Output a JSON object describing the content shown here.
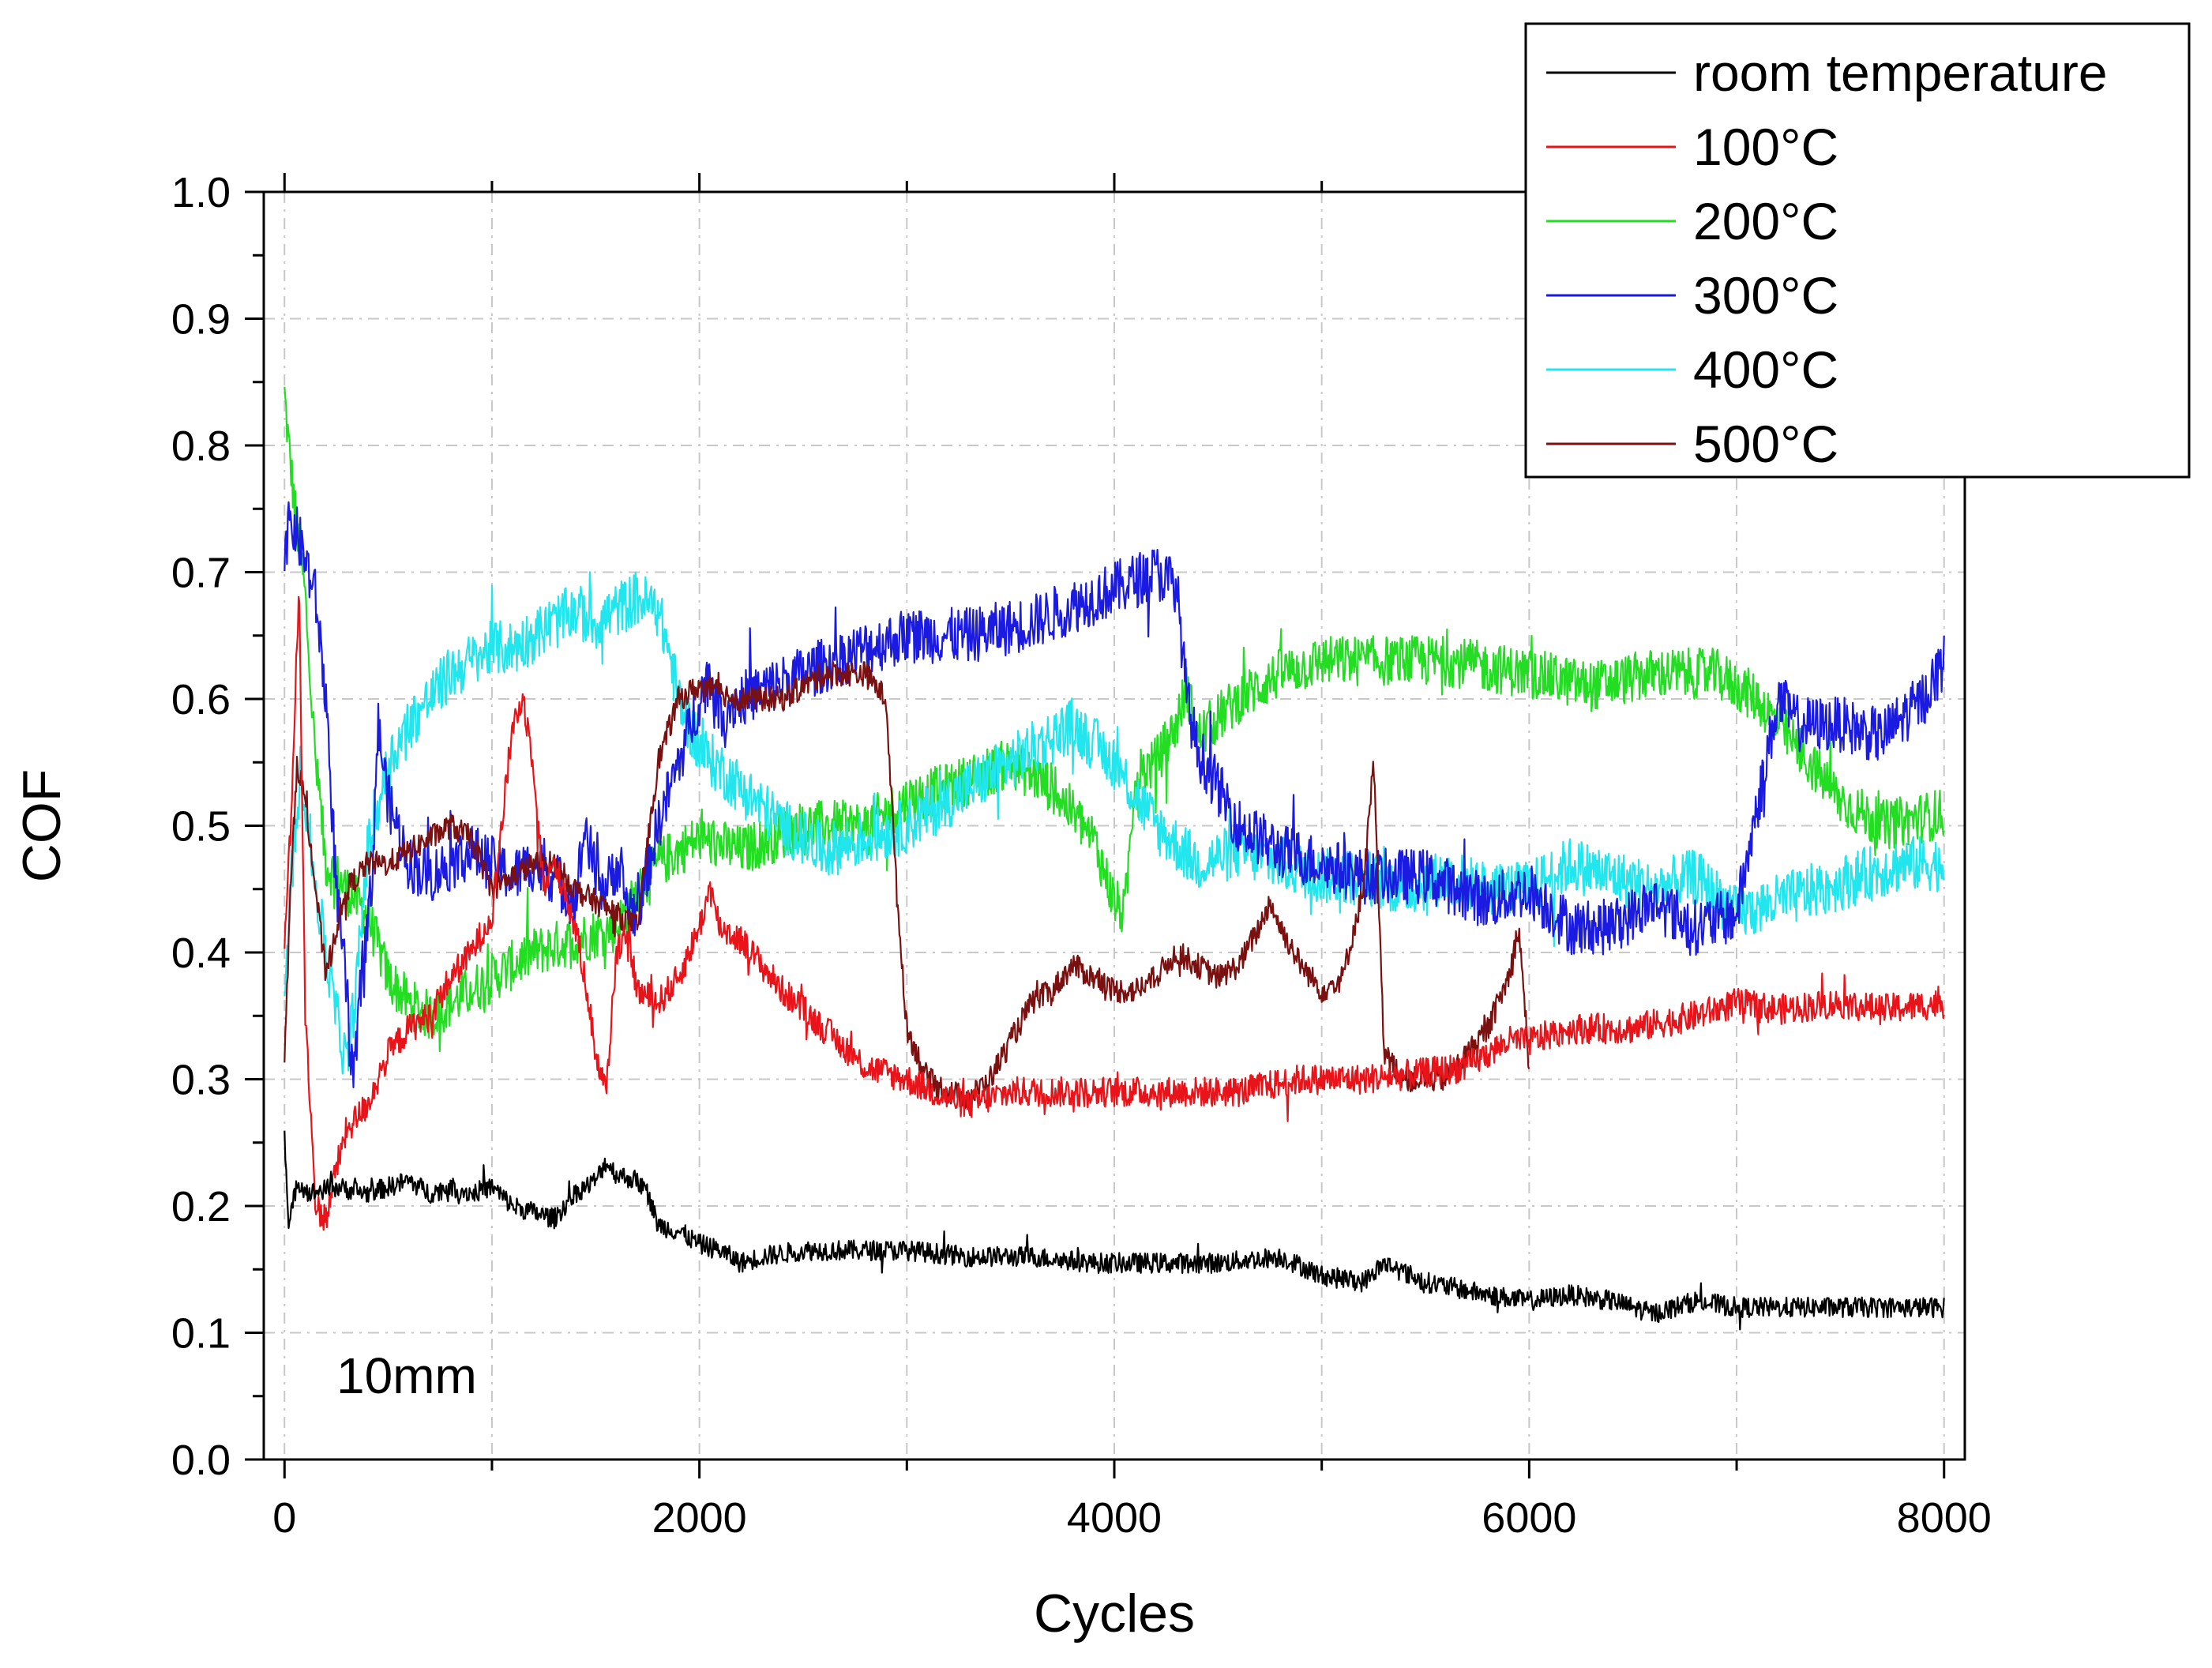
{
  "chart_data": {
    "type": "line",
    "title": "",
    "xlabel": "Cycles",
    "ylabel": "COF",
    "xlim": [
      -100,
      8100
    ],
    "ylim": [
      0.0,
      1.0
    ],
    "x_ticks": [
      0,
      2000,
      4000,
      6000,
      8000
    ],
    "x_tick_labels": [
      "0",
      "2000",
      "4000",
      "6000",
      "8000"
    ],
    "y_ticks": [
      0.0,
      0.1,
      0.2,
      0.3,
      0.4,
      0.5,
      0.6,
      0.7,
      0.8,
      0.9,
      1.0
    ],
    "y_tick_labels": [
      "0.0",
      "0.1",
      "0.2",
      "0.3",
      "0.4",
      "0.5",
      "0.6",
      "0.7",
      "0.8",
      "0.9",
      "1.0"
    ],
    "grid": true,
    "legend_position": "top-right",
    "annotation": "10mm",
    "series": [
      {
        "name": "room temperature",
        "color": "#000000",
        "noise": 0.008,
        "x": [
          0,
          20,
          60,
          120,
          250,
          400,
          500,
          600,
          700,
          800,
          900,
          1000,
          1100,
          1200,
          1300,
          1400,
          1500,
          1550,
          1600,
          1700,
          1750,
          1800,
          1900,
          2000,
          2100,
          2200,
          2300,
          2500,
          2700,
          3000,
          3300,
          3600,
          3900,
          4200,
          4500,
          4800,
          5000,
          5200,
          5300,
          5500,
          5800,
          6000,
          6200,
          6400,
          6600,
          6800,
          7000,
          7200,
          7400,
          7600,
          8000
        ],
        "y": [
          0.26,
          0.18,
          0.22,
          0.21,
          0.215,
          0.21,
          0.215,
          0.22,
          0.21,
          0.215,
          0.21,
          0.215,
          0.2,
          0.195,
          0.19,
          0.21,
          0.22,
          0.235,
          0.225,
          0.22,
          0.21,
          0.185,
          0.18,
          0.17,
          0.165,
          0.155,
          0.16,
          0.165,
          0.165,
          0.165,
          0.16,
          0.16,
          0.155,
          0.155,
          0.155,
          0.16,
          0.145,
          0.14,
          0.155,
          0.14,
          0.13,
          0.125,
          0.13,
          0.125,
          0.115,
          0.125,
          0.12,
          0.12,
          0.12,
          0.12,
          0.12
        ]
      },
      {
        "name": "100°C",
        "color": "#e8141a",
        "noise": 0.012,
        "x": [
          0,
          30,
          70,
          100,
          150,
          200,
          250,
          300,
          400,
          500,
          600,
          700,
          800,
          900,
          1000,
          1100,
          1150,
          1200,
          1250,
          1300,
          1350,
          1400,
          1450,
          1500,
          1550,
          1600,
          1650,
          1700,
          1800,
          1900,
          2000,
          2050,
          2100,
          2200,
          2300,
          2400,
          2600,
          2800,
          3000,
          3200,
          3300,
          3500,
          3700,
          4000,
          4300,
          4600,
          4900,
          5200,
          5500,
          5700,
          5900,
          6000,
          6200,
          6500,
          6800,
          7000,
          7200,
          7500,
          7700,
          8000
        ],
        "y": [
          0.4,
          0.5,
          0.69,
          0.35,
          0.2,
          0.19,
          0.23,
          0.26,
          0.28,
          0.32,
          0.34,
          0.35,
          0.38,
          0.4,
          0.43,
          0.58,
          0.6,
          0.55,
          0.45,
          0.47,
          0.45,
          0.42,
          0.38,
          0.32,
          0.29,
          0.4,
          0.42,
          0.37,
          0.36,
          0.38,
          0.42,
          0.45,
          0.42,
          0.41,
          0.39,
          0.37,
          0.34,
          0.31,
          0.3,
          0.285,
          0.28,
          0.29,
          0.29,
          0.29,
          0.29,
          0.29,
          0.3,
          0.3,
          0.305,
          0.31,
          0.33,
          0.33,
          0.34,
          0.34,
          0.35,
          0.36,
          0.355,
          0.36,
          0.355,
          0.36
        ]
      },
      {
        "name": "200°C",
        "color": "#22dd22",
        "noise": 0.02,
        "x": [
          0,
          20,
          50,
          100,
          150,
          200,
          300,
          400,
          500,
          600,
          700,
          800,
          1000,
          1200,
          1400,
          1600,
          1800,
          2000,
          2200,
          2500,
          2800,
          3000,
          3200,
          3500,
          3700,
          3900,
          4000,
          4050,
          4100,
          4200,
          4300,
          4350,
          4400,
          4600,
          4800,
          5000,
          5300,
          5600,
          6000,
          6300,
          6600,
          6900,
          7100,
          7300,
          7500,
          7700,
          8000
        ],
        "y": [
          0.84,
          0.8,
          0.75,
          0.68,
          0.55,
          0.47,
          0.45,
          0.43,
          0.38,
          0.36,
          0.35,
          0.36,
          0.38,
          0.4,
          0.41,
          0.42,
          0.47,
          0.49,
          0.48,
          0.5,
          0.5,
          0.52,
          0.53,
          0.55,
          0.53,
          0.49,
          0.44,
          0.43,
          0.54,
          0.55,
          0.58,
          0.61,
          0.57,
          0.6,
          0.62,
          0.63,
          0.63,
          0.63,
          0.62,
          0.61,
          0.62,
          0.62,
          0.6,
          0.56,
          0.52,
          0.5,
          0.51
        ]
      },
      {
        "name": "300°C",
        "color": "#1a1ae0",
        "noise": 0.022,
        "x": [
          0,
          30,
          60,
          100,
          150,
          200,
          250,
          300,
          330,
          380,
          420,
          450,
          500,
          600,
          700,
          800,
          900,
          1000,
          1100,
          1200,
          1300,
          1400,
          1450,
          1500,
          1550,
          1600,
          1650,
          1700,
          1800,
          1900,
          2000,
          2050,
          2100,
          2200,
          2500,
          2800,
          3000,
          3300,
          3600,
          3900,
          4200,
          4300,
          4350,
          4400,
          4600,
          4800,
          5000,
          5200,
          5500,
          5800,
          6000,
          6200,
          6400,
          6600,
          6800,
          7000,
          7200,
          7300,
          7500,
          7700,
          7900,
          8000
        ],
        "y": [
          0.72,
          0.74,
          0.73,
          0.71,
          0.68,
          0.6,
          0.45,
          0.37,
          0.29,
          0.4,
          0.45,
          0.58,
          0.52,
          0.47,
          0.46,
          0.47,
          0.48,
          0.47,
          0.46,
          0.47,
          0.46,
          0.44,
          0.5,
          0.46,
          0.45,
          0.47,
          0.44,
          0.43,
          0.5,
          0.55,
          0.6,
          0.62,
          0.59,
          0.6,
          0.62,
          0.64,
          0.65,
          0.65,
          0.66,
          0.68,
          0.7,
          0.69,
          0.6,
          0.56,
          0.5,
          0.48,
          0.47,
          0.46,
          0.46,
          0.44,
          0.45,
          0.42,
          0.42,
          0.44,
          0.42,
          0.43,
          0.6,
          0.58,
          0.58,
          0.57,
          0.6,
          0.63
        ]
      },
      {
        "name": "400°C",
        "color": "#22e6ee",
        "noise": 0.022,
        "x": [
          0,
          30,
          80,
          150,
          200,
          250,
          300,
          350,
          400,
          500,
          600,
          700,
          800,
          900,
          1000,
          1100,
          1200,
          1300,
          1400,
          1500,
          1600,
          1700,
          1800,
          1850,
          1900,
          2000,
          2200,
          2400,
          2600,
          2800,
          3000,
          3200,
          3400,
          3600,
          3800,
          4000,
          4200,
          4400,
          4600,
          4800,
          5000,
          5200,
          5400,
          5600,
          5800,
          6000,
          6200,
          6400,
          6600,
          6800,
          7000,
          7200,
          7400,
          7600,
          7800,
          8000
        ],
        "y": [
          0.35,
          0.45,
          0.55,
          0.45,
          0.4,
          0.35,
          0.31,
          0.38,
          0.48,
          0.55,
          0.58,
          0.6,
          0.62,
          0.63,
          0.64,
          0.64,
          0.65,
          0.66,
          0.67,
          0.66,
          0.67,
          0.68,
          0.67,
          0.64,
          0.6,
          0.56,
          0.53,
          0.5,
          0.48,
          0.49,
          0.5,
          0.52,
          0.54,
          0.56,
          0.58,
          0.55,
          0.5,
          0.47,
          0.48,
          0.47,
          0.46,
          0.46,
          0.45,
          0.46,
          0.45,
          0.45,
          0.47,
          0.46,
          0.45,
          0.46,
          0.43,
          0.44,
          0.45,
          0.46,
          0.47,
          0.47
        ]
      },
      {
        "name": "500°C",
        "color": "#7a1010",
        "noise": 0.01,
        "x": [
          0,
          30,
          60,
          100,
          150,
          200,
          250,
          300,
          400,
          500,
          600,
          700,
          800,
          900,
          1000,
          1100,
          1200,
          1300,
          1400,
          1500,
          1600,
          1700,
          1800,
          1900,
          2000,
          2200,
          2400,
          2600,
          2800,
          2900,
          2950,
          3000,
          3100,
          3200,
          3300,
          3400,
          3500,
          3600,
          3700,
          3800,
          3900,
          4000,
          4100,
          4200,
          4300,
          4400,
          4500,
          4600,
          4700,
          4750,
          4800,
          4900,
          5000,
          5100,
          5200,
          5250,
          5300,
          5400,
          5600,
          5800,
          5900,
          5950,
          6000
        ],
        "y": [
          0.32,
          0.45,
          0.55,
          0.52,
          0.45,
          0.38,
          0.42,
          0.45,
          0.47,
          0.47,
          0.48,
          0.49,
          0.5,
          0.49,
          0.45,
          0.46,
          0.47,
          0.47,
          0.45,
          0.44,
          0.43,
          0.42,
          0.55,
          0.6,
          0.61,
          0.6,
          0.6,
          0.62,
          0.62,
          0.6,
          0.45,
          0.34,
          0.3,
          0.29,
          0.285,
          0.3,
          0.33,
          0.36,
          0.37,
          0.39,
          0.38,
          0.37,
          0.37,
          0.38,
          0.4,
          0.39,
          0.38,
          0.39,
          0.42,
          0.44,
          0.42,
          0.39,
          0.37,
          0.38,
          0.45,
          0.55,
          0.32,
          0.3,
          0.3,
          0.34,
          0.38,
          0.42,
          0.31
        ]
      }
    ]
  }
}
